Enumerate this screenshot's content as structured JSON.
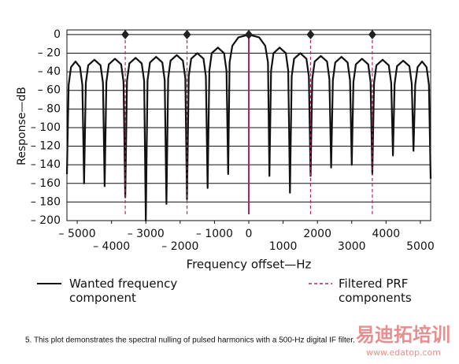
{
  "chart_data": {
    "type": "line",
    "xlabel": "Frequency offset—Hz",
    "ylabel": "Response—dB",
    "caption": "5. This plot demonstrates the spectral nulling of pulsed harmonics with a 500-Hz digital IF filter.",
    "watermark": [
      "易迪拓培训",
      "www.edatop.com"
    ],
    "xlim": [
      -5300,
      5300
    ],
    "ylim": [
      -200,
      5
    ],
    "grid": true,
    "xticks": [
      {
        "value": -5000,
        "label": "– 5000"
      },
      {
        "value": -4000,
        "label": "– 4000"
      },
      {
        "value": -3000,
        "label": "– 3000"
      },
      {
        "value": -2000,
        "label": "– 2000"
      },
      {
        "value": -1000,
        "label": "– 1000"
      },
      0,
      1000,
      2000,
      3000,
      4000,
      5000
    ],
    "yticks": [
      0,
      {
        "value": -20,
        "label": "– 20"
      },
      {
        "value": -40,
        "label": "– 40"
      },
      {
        "value": -60,
        "label": "– 60"
      },
      {
        "value": -80,
        "label": "– 80"
      },
      {
        "value": -100,
        "label": "– 100"
      },
      {
        "value": -120,
        "label": "– 120"
      },
      {
        "value": -140,
        "label": "– 140"
      },
      {
        "value": -160,
        "label": "– 160"
      },
      {
        "value": -180,
        "label": "– 180"
      },
      {
        "value": -200,
        "label": "– 200"
      }
    ],
    "series": [
      {
        "name": "Wanted frequency component",
        "color": "#111111",
        "x": [
          -5300,
          -5250,
          -5180,
          -5050,
          -4920,
          -4850,
          -4800,
          -4750,
          -4680,
          -4500,
          -4320,
          -4250,
          -4200,
          -4150,
          -4080,
          -3900,
          -3720,
          -3650,
          -3600,
          -3550,
          -3480,
          -3300,
          -3120,
          -3050,
          -3000,
          -2950,
          -2880,
          -2700,
          -2520,
          -2450,
          -2400,
          -2350,
          -2280,
          -2100,
          -1920,
          -1850,
          -1800,
          -1750,
          -1680,
          -1500,
          -1320,
          -1250,
          -1200,
          -1150,
          -1080,
          -900,
          -720,
          -650,
          -600,
          -560,
          -480,
          -300,
          0,
          300,
          480,
          560,
          600,
          650,
          720,
          900,
          1080,
          1150,
          1200,
          1250,
          1320,
          1500,
          1680,
          1750,
          1800,
          1850,
          1920,
          2100,
          2280,
          2350,
          2400,
          2450,
          2520,
          2700,
          2880,
          2950,
          3000,
          3050,
          3120,
          3300,
          3480,
          3550,
          3600,
          3650,
          3720,
          3900,
          4080,
          4150,
          4200,
          4250,
          4320,
          4500,
          4680,
          4750,
          4800,
          4850,
          4920,
          5050,
          5180,
          5250,
          5300
        ],
        "values": [
          -150,
          -54,
          -35,
          -29,
          -35,
          -54,
          -160,
          -52,
          -33,
          -27,
          -33,
          -52,
          -163,
          -51,
          -32,
          -26,
          -32,
          -51,
          -175,
          -50,
          -31,
          -25,
          -31,
          -50,
          -200,
          -49,
          -30,
          -24,
          -30,
          -49,
          -182,
          -47,
          -28,
          -22,
          -28,
          -47,
          -177,
          -45,
          -26,
          -20,
          -26,
          -45,
          -165,
          -39,
          -20,
          -14,
          -20,
          -39,
          -150,
          -30,
          -12,
          -3,
          0,
          -3,
          -12,
          -30,
          -152,
          -39,
          -20,
          -14,
          -20,
          -39,
          -170,
          -45,
          -26,
          -20,
          -26,
          -45,
          -152,
          -48,
          -29,
          -23,
          -29,
          -48,
          -143,
          -49,
          -30,
          -24,
          -30,
          -49,
          -140,
          -51,
          -32,
          -26,
          -32,
          -51,
          -150,
          -52,
          -33,
          -27,
          -33,
          -52,
          -130,
          -53,
          -34,
          -28,
          -34,
          -53,
          -125,
          -54,
          -35,
          -29,
          -35,
          -54,
          -155
        ]
      },
      {
        "name": "Filtered PRF components",
        "color": "#b0246a",
        "x": [
          -3600,
          -1800,
          0,
          1800,
          3600
        ],
        "values": [
          0,
          0,
          0,
          0,
          0
        ]
      }
    ]
  }
}
